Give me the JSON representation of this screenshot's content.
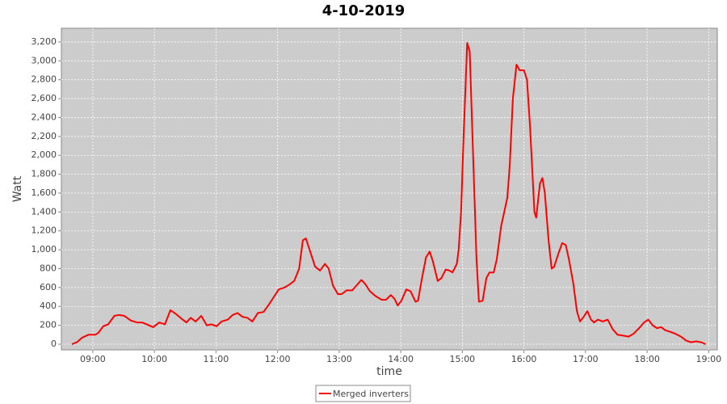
{
  "chart_data": {
    "type": "line",
    "title": "4-10-2019",
    "x_label": "time",
    "y_label": "Watt",
    "x": [
      8.66,
      8.74,
      8.83,
      8.93,
      9.04,
      9.09,
      9.17,
      9.25,
      9.35,
      9.43,
      9.51,
      9.62,
      9.72,
      9.8,
      9.91,
      9.98,
      10.08,
      10.17,
      10.26,
      10.35,
      10.44,
      10.52,
      10.59,
      10.67,
      10.76,
      10.85,
      10.93,
      11.01,
      11.09,
      11.19,
      11.27,
      11.35,
      11.43,
      11.51,
      11.59,
      11.68,
      11.77,
      11.86,
      11.94,
      12.02,
      12.11,
      12.19,
      12.27,
      12.35,
      12.41,
      12.46,
      12.54,
      12.61,
      12.69,
      12.77,
      12.83,
      12.9,
      12.98,
      13.04,
      13.12,
      13.21,
      13.28,
      13.36,
      13.42,
      13.5,
      13.59,
      13.69,
      13.76,
      13.84,
      13.9,
      13.95,
      14.01,
      14.09,
      14.16,
      14.24,
      14.28,
      14.34,
      14.41,
      14.47,
      14.52,
      14.6,
      14.66,
      14.73,
      14.79,
      14.84,
      14.91,
      14.94,
      14.98,
      15.02,
      15.08,
      15.12,
      15.17,
      15.23,
      15.27,
      15.33,
      15.39,
      15.44,
      15.51,
      15.56,
      15.63,
      15.69,
      15.73,
      15.77,
      15.82,
      15.88,
      15.93,
      16.0,
      16.05,
      16.1,
      16.17,
      16.2,
      16.26,
      16.3,
      16.34,
      16.4,
      16.45,
      16.49,
      16.56,
      16.62,
      16.68,
      16.73,
      16.8,
      16.86,
      16.91,
      16.97,
      17.03,
      17.09,
      17.14,
      17.2,
      17.28,
      17.36,
      17.44,
      17.52,
      17.62,
      17.7,
      17.78,
      17.87,
      17.95,
      18.02,
      18.09,
      18.16,
      18.23,
      18.29,
      18.38,
      18.46,
      18.55,
      18.63,
      18.71,
      18.8,
      18.88,
      18.95
    ],
    "series": [
      {
        "name": "Merged inverters",
        "color": "#ff0000",
        "values": [
          0,
          20,
          70,
          100,
          100,
          120,
          190,
          210,
          300,
          310,
          300,
          250,
          230,
          230,
          200,
          180,
          230,
          210,
          360,
          320,
          270,
          230,
          280,
          240,
          300,
          200,
          210,
          190,
          240,
          260,
          310,
          330,
          290,
          280,
          240,
          330,
          340,
          420,
          500,
          580,
          600,
          630,
          670,
          800,
          1100,
          1120,
          960,
          820,
          780,
          850,
          800,
          620,
          530,
          530,
          570,
          570,
          620,
          680,
          640,
          560,
          510,
          470,
          470,
          520,
          480,
          410,
          460,
          580,
          560,
          450,
          460,
          680,
          920,
          980,
          880,
          670,
          700,
          790,
          780,
          760,
          850,
          1000,
          1400,
          2200,
          3190,
          3100,
          2100,
          900,
          450,
          460,
          700,
          760,
          760,
          900,
          1250,
          1430,
          1550,
          1900,
          2600,
          2960,
          2900,
          2900,
          2800,
          2300,
          1400,
          1340,
          1700,
          1760,
          1600,
          1100,
          800,
          820,
          960,
          1070,
          1050,
          900,
          650,
          350,
          240,
          290,
          350,
          260,
          230,
          260,
          240,
          260,
          160,
          100,
          90,
          80,
          110,
          170,
          230,
          260,
          200,
          170,
          180,
          150,
          130,
          110,
          80,
          40,
          20,
          30,
          20,
          0
        ]
      }
    ],
    "xlim": [
      8.49,
      19.14
    ],
    "ylim": [
      -60,
      3345
    ],
    "xticks": [
      {
        "value": 9,
        "label": "09:00"
      },
      {
        "value": 10,
        "label": "10:00"
      },
      {
        "value": 11,
        "label": "11:00"
      },
      {
        "value": 12,
        "label": "12:00"
      },
      {
        "value": 13,
        "label": "13:00"
      },
      {
        "value": 14,
        "label": "14:00"
      },
      {
        "value": 15,
        "label": "15:00"
      },
      {
        "value": 16,
        "label": "16:00"
      },
      {
        "value": 17,
        "label": "17:00"
      },
      {
        "value": 18,
        "label": "18:00"
      },
      {
        "value": 19,
        "label": "19:00"
      }
    ],
    "yticks": [
      0,
      200,
      400,
      600,
      800,
      {
        "value": 1000,
        "label": "1,000"
      },
      {
        "value": 1200,
        "label": "1,200"
      },
      {
        "value": 1400,
        "label": "1,400"
      },
      {
        "value": 1600,
        "label": "1,600"
      },
      {
        "value": 1800,
        "label": "1,800"
      },
      {
        "value": 2000,
        "label": "2,000"
      },
      {
        "value": 2200,
        "label": "2,200"
      },
      {
        "value": 2400,
        "label": "2,400"
      },
      {
        "value": 2600,
        "label": "2,600"
      },
      {
        "value": 2800,
        "label": "2,800"
      },
      {
        "value": 3000,
        "label": "3,000"
      },
      {
        "value": 3200,
        "label": "3,200"
      }
    ],
    "grid": true,
    "legend": "bottom"
  }
}
